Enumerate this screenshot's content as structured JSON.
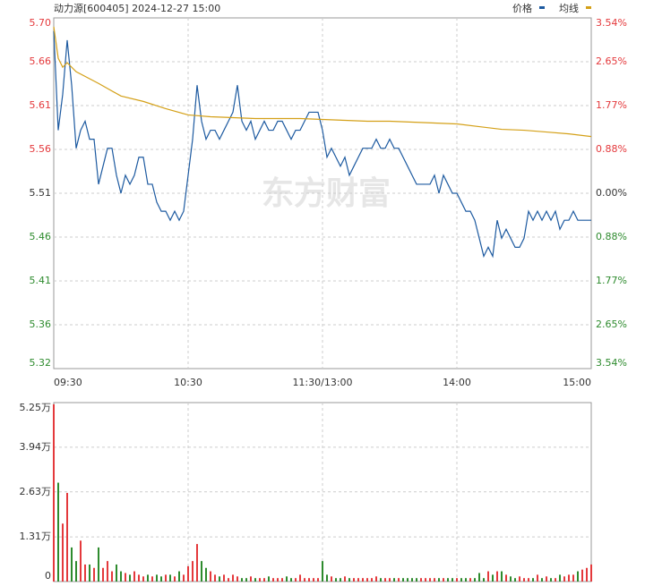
{
  "chart_data": [
    {
      "type": "line",
      "title": "动力源[600405] 2024-12-27 15:00",
      "watermark": "东方财富",
      "xlim": [
        0,
        240
      ],
      "xticks": [
        {
          "value": 0,
          "label": "09:30"
        },
        {
          "value": 60,
          "label": "10:30"
        },
        {
          "value": 120,
          "label": "11:30/13:00"
        },
        {
          "value": 180,
          "label": "14:00"
        },
        {
          "value": 240,
          "label": "15:00"
        }
      ],
      "ylim": [
        5.3152,
        5.7048
      ],
      "yticks": [
        {
          "value": 5.7048,
          "label": "5.70"
        },
        {
          "value": 5.6561,
          "label": "5.66"
        },
        {
          "value": 5.6074,
          "label": "5.61"
        },
        {
          "value": 5.5587,
          "label": "5.56"
        },
        {
          "value": 5.51,
          "label": "5.51"
        },
        {
          "value": 5.4613,
          "label": "5.46"
        },
        {
          "value": 5.4126,
          "label": "5.41"
        },
        {
          "value": 5.3639,
          "label": "5.36"
        },
        {
          "value": 5.3152,
          "label": "5.32"
        }
      ],
      "y2lim": [
        -3.54,
        3.54
      ],
      "y2ticks": [
        {
          "value": 3.54,
          "label": "3.54%"
        },
        {
          "value": 2.654,
          "label": "2.65%"
        },
        {
          "value": 1.77,
          "label": "1.77%"
        },
        {
          "value": 0.884,
          "label": "0.88%"
        },
        {
          "value": 0,
          "label": "0.00%"
        },
        {
          "value": -0.884,
          "label": "0.88%"
        },
        {
          "value": -1.77,
          "label": "1.77%"
        },
        {
          "value": -2.654,
          "label": "2.65%"
        },
        {
          "value": -3.54,
          "label": "3.54%"
        }
      ],
      "up_color": "#e4393c",
      "down_color": "#2e8b2e",
      "flat_color": "#333333",
      "grid": true,
      "series": [
        {
          "name": "价格",
          "color": "#1d5aa0",
          "x": [
            0,
            2,
            4,
            6,
            8,
            10,
            12,
            14,
            16,
            18,
            20,
            22,
            24,
            26,
            28,
            30,
            32,
            34,
            36,
            38,
            40,
            42,
            44,
            46,
            48,
            50,
            52,
            54,
            56,
            58,
            60,
            62,
            64,
            66,
            68,
            70,
            72,
            74,
            76,
            78,
            80,
            82,
            84,
            86,
            88,
            90,
            92,
            94,
            96,
            98,
            100,
            102,
            104,
            106,
            108,
            110,
            112,
            114,
            116,
            118,
            120,
            122,
            124,
            126,
            128,
            130,
            132,
            134,
            136,
            138,
            140,
            142,
            144,
            146,
            148,
            150,
            152,
            154,
            156,
            158,
            160,
            162,
            164,
            166,
            168,
            170,
            172,
            174,
            176,
            178,
            180,
            182,
            184,
            186,
            188,
            190,
            192,
            194,
            196,
            198,
            200,
            202,
            204,
            206,
            208,
            210,
            212,
            214,
            216,
            218,
            220,
            222,
            224,
            226,
            228,
            230,
            232,
            234,
            236,
            238,
            240
          ],
          "values": [
            5.69,
            5.58,
            5.62,
            5.68,
            5.63,
            5.56,
            5.58,
            5.59,
            5.57,
            5.57,
            5.52,
            5.54,
            5.56,
            5.56,
            5.53,
            5.51,
            5.53,
            5.52,
            5.53,
            5.55,
            5.55,
            5.52,
            5.52,
            5.5,
            5.49,
            5.49,
            5.48,
            5.49,
            5.48,
            5.49,
            5.53,
            5.57,
            5.63,
            5.59,
            5.57,
            5.58,
            5.58,
            5.57,
            5.58,
            5.59,
            5.6,
            5.63,
            5.59,
            5.58,
            5.59,
            5.57,
            5.58,
            5.59,
            5.58,
            5.58,
            5.59,
            5.59,
            5.58,
            5.57,
            5.58,
            5.58,
            5.59,
            5.6,
            5.6,
            5.6,
            5.58,
            5.55,
            5.56,
            5.55,
            5.54,
            5.55,
            5.53,
            5.54,
            5.55,
            5.56,
            5.56,
            5.56,
            5.57,
            5.56,
            5.56,
            5.57,
            5.56,
            5.56,
            5.55,
            5.54,
            5.53,
            5.52,
            5.52,
            5.52,
            5.52,
            5.53,
            5.51,
            5.53,
            5.52,
            5.51,
            5.51,
            5.5,
            5.49,
            5.49,
            5.48,
            5.46,
            5.44,
            5.45,
            5.44,
            5.48,
            5.46,
            5.47,
            5.46,
            5.45,
            5.45,
            5.46,
            5.49,
            5.48,
            5.49,
            5.48,
            5.49,
            5.48,
            5.49,
            5.47,
            5.48,
            5.48,
            5.49,
            5.48,
            5.48,
            5.48,
            5.48
          ]
        },
        {
          "name": "均线",
          "color": "#d4a017",
          "x": [
            0,
            2,
            4,
            6,
            10,
            20,
            30,
            40,
            50,
            60,
            70,
            80,
            90,
            100,
            110,
            120,
            130,
            140,
            150,
            160,
            170,
            180,
            190,
            200,
            210,
            220,
            230,
            240
          ],
          "values": [
            5.695,
            5.66,
            5.65,
            5.655,
            5.645,
            5.632,
            5.618,
            5.612,
            5.604,
            5.597,
            5.595,
            5.594,
            5.593,
            5.593,
            5.593,
            5.592,
            5.591,
            5.59,
            5.59,
            5.589,
            5.588,
            5.587,
            5.584,
            5.581,
            5.58,
            5.578,
            5.576,
            5.573
          ]
        }
      ]
    },
    {
      "type": "bar",
      "xlim": [
        0,
        240
      ],
      "xticks": [
        0,
        60,
        120,
        180,
        240
      ],
      "ylim": [
        0,
        5.25
      ],
      "yticks": [
        {
          "value": 5.25,
          "label": "5.25万"
        },
        {
          "value": 3.94,
          "label": "3.94万"
        },
        {
          "value": 2.63,
          "label": "2.63万"
        },
        {
          "value": 1.31,
          "label": "1.31万"
        },
        0
      ],
      "grid": true,
      "x": [
        0,
        2,
        4,
        6,
        8,
        10,
        12,
        14,
        16,
        18,
        20,
        22,
        24,
        26,
        28,
        30,
        32,
        34,
        36,
        38,
        40,
        42,
        44,
        46,
        48,
        50,
        52,
        54,
        56,
        58,
        60,
        62,
        64,
        66,
        68,
        70,
        72,
        74,
        76,
        78,
        80,
        82,
        84,
        86,
        88,
        90,
        92,
        94,
        96,
        98,
        100,
        102,
        104,
        106,
        108,
        110,
        112,
        114,
        116,
        118,
        120,
        122,
        124,
        126,
        128,
        130,
        132,
        134,
        136,
        138,
        140,
        142,
        144,
        146,
        148,
        150,
        152,
        154,
        156,
        158,
        160,
        162,
        164,
        166,
        168,
        170,
        172,
        174,
        176,
        178,
        180,
        182,
        184,
        186,
        188,
        190,
        192,
        194,
        196,
        198,
        200,
        202,
        204,
        206,
        208,
        210,
        212,
        214,
        216,
        218,
        220,
        222,
        224,
        226,
        228,
        230,
        232,
        234,
        236,
        238,
        240
      ],
      "values": [
        5.2,
        2.9,
        1.7,
        2.6,
        1.0,
        0.6,
        1.2,
        0.5,
        0.5,
        0.4,
        1.0,
        0.4,
        0.6,
        0.3,
        0.5,
        0.3,
        0.25,
        0.2,
        0.3,
        0.2,
        0.15,
        0.2,
        0.15,
        0.2,
        0.15,
        0.2,
        0.2,
        0.15,
        0.3,
        0.2,
        0.45,
        0.6,
        1.1,
        0.6,
        0.4,
        0.3,
        0.2,
        0.15,
        0.2,
        0.1,
        0.2,
        0.15,
        0.1,
        0.1,
        0.15,
        0.1,
        0.1,
        0.1,
        0.15,
        0.1,
        0.1,
        0.1,
        0.15,
        0.1,
        0.1,
        0.2,
        0.1,
        0.1,
        0.1,
        0.1,
        0.6,
        0.2,
        0.15,
        0.1,
        0.1,
        0.15,
        0.1,
        0.1,
        0.1,
        0.1,
        0.1,
        0.1,
        0.15,
        0.1,
        0.1,
        0.1,
        0.1,
        0.1,
        0.1,
        0.1,
        0.1,
        0.1,
        0.1,
        0.1,
        0.1,
        0.1,
        0.1,
        0.1,
        0.1,
        0.1,
        0.1,
        0.1,
        0.1,
        0.1,
        0.1,
        0.25,
        0.1,
        0.3,
        0.2,
        0.3,
        0.3,
        0.2,
        0.15,
        0.1,
        0.15,
        0.1,
        0.1,
        0.1,
        0.2,
        0.1,
        0.15,
        0.1,
        0.1,
        0.2,
        0.15,
        0.2,
        0.2,
        0.3,
        0.35,
        0.4,
        0.5
      ]
    }
  ]
}
